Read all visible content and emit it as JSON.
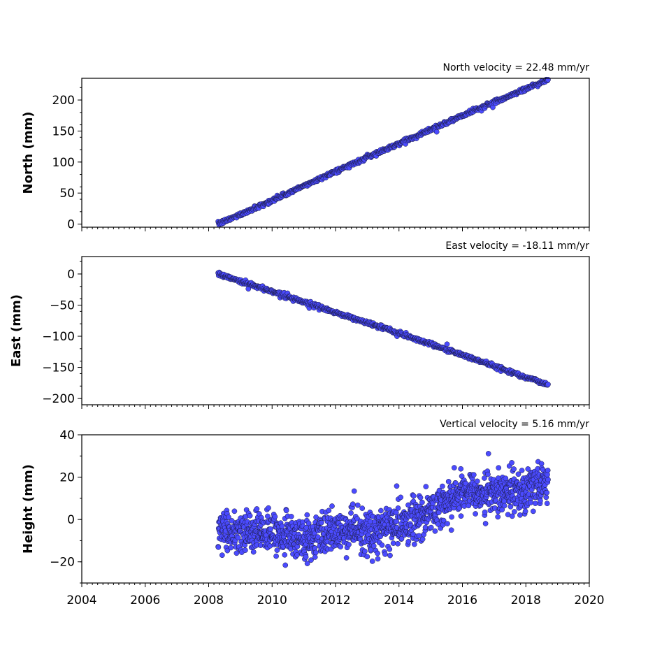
{
  "chart_data": [
    {
      "type": "scatter",
      "title": "North velocity = 22.48 mm/yr",
      "xlabel": "",
      "ylabel": "North (mm)",
      "xlim": [
        2004,
        2020
      ],
      "ylim": [
        -5,
        235
      ],
      "y_ticks": [
        0,
        50,
        100,
        150,
        200
      ],
      "x_range": [
        2008.3,
        2018.7
      ],
      "trend": [
        [
          2008.3,
          0
        ],
        [
          2010.0,
          38
        ],
        [
          2012.0,
          85
        ],
        [
          2014.0,
          130
        ],
        [
          2016.0,
          175
        ],
        [
          2018.7,
          233
        ]
      ],
      "noise": 1.5,
      "color": "#4b4bff"
    },
    {
      "type": "scatter",
      "title": "East velocity = -18.11 mm/yr",
      "xlabel": "",
      "ylabel": "East (mm)",
      "xlim": [
        2004,
        2020
      ],
      "ylim": [
        -210,
        28
      ],
      "y_ticks": [
        0,
        -50,
        -100,
        -150,
        -200
      ],
      "x_range": [
        2008.3,
        2018.7
      ],
      "trend": [
        [
          2008.3,
          0
        ],
        [
          2010.0,
          -28
        ],
        [
          2012.0,
          -62
        ],
        [
          2014.0,
          -95
        ],
        [
          2016.0,
          -130
        ],
        [
          2018.7,
          -178
        ]
      ],
      "noise": 1.5,
      "color": "#4b4bff"
    },
    {
      "type": "scatter",
      "title": "Vertical velocity = 5.16 mm/yr",
      "xlabel": "",
      "ylabel": "Height (mm)",
      "xlim": [
        2004,
        2020
      ],
      "ylim": [
        -30,
        40
      ],
      "y_ticks": [
        40,
        20,
        0,
        -20
      ],
      "x_ticks": [
        2004,
        2006,
        2008,
        2010,
        2012,
        2014,
        2016,
        2018,
        2020
      ],
      "x_range": [
        2008.3,
        2018.7
      ],
      "trend": [
        [
          2008.3,
          -5
        ],
        [
          2010.0,
          -6
        ],
        [
          2011.0,
          -10
        ],
        [
          2012.0,
          -5
        ],
        [
          2013.0,
          -7
        ],
        [
          2014.0,
          -3
        ],
        [
          2015.0,
          3
        ],
        [
          2016.0,
          14
        ],
        [
          2017.0,
          12
        ],
        [
          2018.0,
          14
        ],
        [
          2018.7,
          18
        ]
      ],
      "noise": 5,
      "color": "#4b4bff"
    }
  ]
}
